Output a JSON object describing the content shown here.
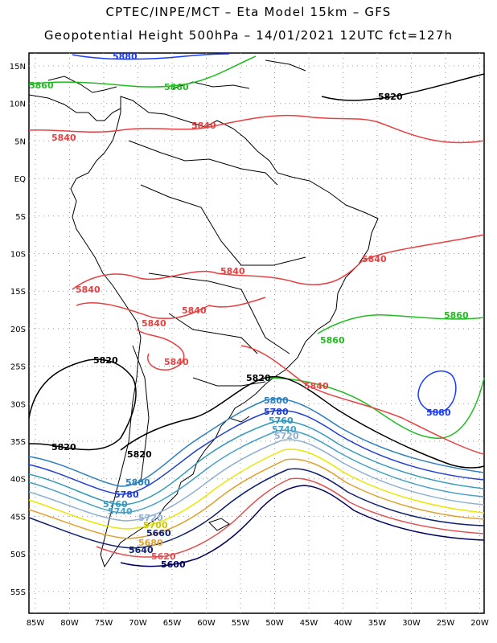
{
  "header": {
    "line1": "CPTEC/INPE/MCT –  Eta Model 15km – GFS",
    "line2": "Geopotential Height 500hPa – 14/01/2021 12UTC fct=127h"
  },
  "axes": {
    "lat_labels": [
      "15N",
      "10N",
      "5N",
      "EQ",
      "5S",
      "10S",
      "15S",
      "20S",
      "25S",
      "30S",
      "35S",
      "40S",
      "45S",
      "50S",
      "55S"
    ],
    "lon_labels": [
      "85W",
      "80W",
      "75W",
      "70W",
      "65W",
      "60W",
      "55W",
      "50W",
      "45W",
      "40W",
      "35W",
      "30W",
      "25W",
      "20W"
    ]
  },
  "contours": [
    {
      "value": "5880",
      "color": "#1a3cff"
    },
    {
      "value": "5860",
      "color": "#22bb22"
    },
    {
      "value": "5840",
      "color": "#e84040"
    },
    {
      "value": "5820",
      "color": "#000000"
    },
    {
      "value": "5800",
      "color": "#2b7fbd"
    },
    {
      "value": "5780",
      "color": "#1f3fd0"
    },
    {
      "value": "5760",
      "color": "#3399bb"
    },
    {
      "value": "5740",
      "color": "#44a0c8"
    },
    {
      "value": "5720",
      "color": "#8fb0d0"
    },
    {
      "value": "5700",
      "color": "#e8e800"
    },
    {
      "value": "5680",
      "color": "#e0a030"
    },
    {
      "value": "5660",
      "color": "#102070"
    },
    {
      "value": "5640",
      "color": "#e05050"
    },
    {
      "value": "5620",
      "color": "#000060"
    }
  ],
  "labels": {
    "l5880_top": "5880",
    "l5860_nw": "5860",
    "l5860_n": "5860",
    "l5820_ne": "5820",
    "l5840_w": "5840",
    "l5840_n": "5840",
    "l5840_ne": "5840",
    "l5840_c1": "5840",
    "l5840_c2": "5840",
    "l5840_c3": "5840",
    "l5840_c4": "5840",
    "l5840_c5": "5840",
    "l5840_c6": "5840",
    "l5860_e": "5860",
    "l5860_se": "5860",
    "l5880_low": "5880",
    "l5820_w": "5820",
    "l5820_sw": "5820",
    "l5820_c": "5820",
    "l5820_s": "5820",
    "l5800_a": "5800",
    "l5800_b": "5800",
    "l5780_a": "5780",
    "l5780_b": "5780",
    "l5760_a": "5760",
    "l5760_b": "5760",
    "l5740_a": "5740",
    "l5740_b": "5740",
    "l5720_a": "5720",
    "l5720_b": "5720",
    "l5700_a": "5700",
    "l5680_a": "5680",
    "l5660_a": "5660",
    "l5640_a": "5640",
    "l5620_a": "5620",
    "l5600_a": "5600"
  }
}
